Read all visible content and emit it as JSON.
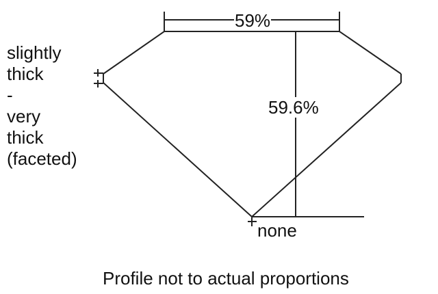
{
  "diagram": {
    "table_percent": "59%",
    "depth_percent": "59.6%",
    "girdle_lines": [
      "slightly",
      "thick",
      "-",
      "very",
      "thick",
      "(faceted)"
    ],
    "culet": "none",
    "caption": "Profile not to actual proportions",
    "line_color": "#222222"
  }
}
